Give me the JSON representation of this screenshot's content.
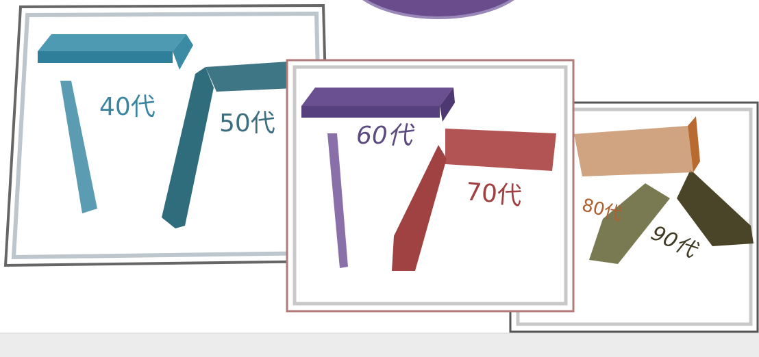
{
  "labels": [
    "40代",
    "50代",
    "60代",
    "70代",
    "80代",
    "90代"
  ]
}
